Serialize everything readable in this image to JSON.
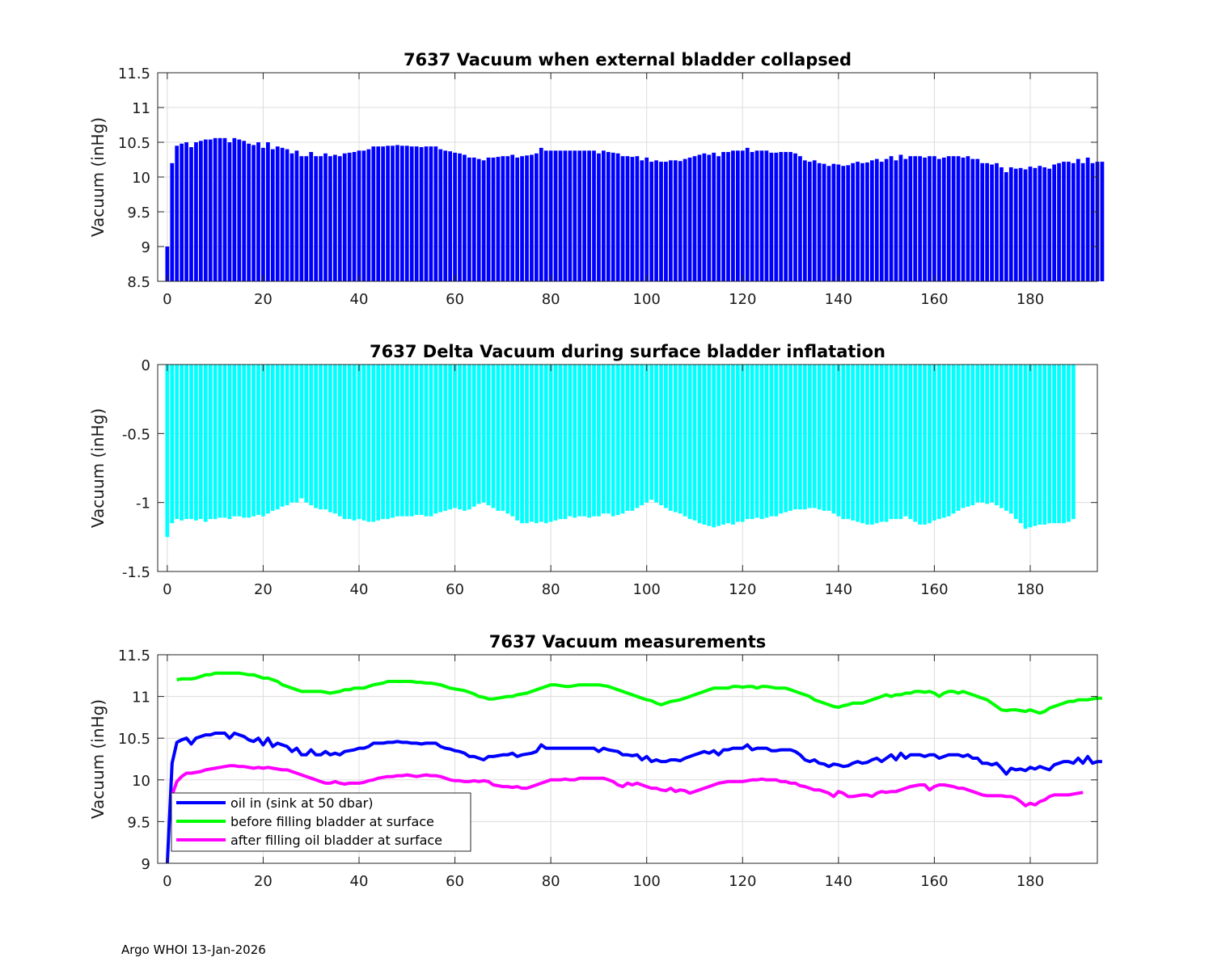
{
  "footer": "Argo WHOI 13-Jan-2026",
  "colors": {
    "blue": "#0000ff",
    "cyan": "#00ffff",
    "green": "#00ff00",
    "magenta": "#ff00ff",
    "grid": "#dcdcdc"
  },
  "chart_data": [
    {
      "type": "bar",
      "title": "7637 Vacuum when external bladder collapsed",
      "xlabel": "",
      "ylabel": "Vacuum (inHg)",
      "xlim": [
        -2,
        194
      ],
      "ylim": [
        8.5,
        11.5
      ],
      "xticks": [
        0,
        20,
        40,
        60,
        80,
        100,
        120,
        140,
        160,
        180
      ],
      "yticks": [
        8.5,
        9,
        9.5,
        10,
        10.5,
        11,
        11.5
      ],
      "ytick_labels": [
        "8.5",
        "9",
        "9.5",
        "10",
        "10.5",
        "11",
        "11.5"
      ],
      "color": "#0000ff",
      "series_key": "oil_in"
    },
    {
      "type": "bar",
      "title": "7637 Delta Vacuum during surface bladder inflatation",
      "xlabel": "",
      "ylabel": "Vacuum (inHg)",
      "xlim": [
        -2,
        194
      ],
      "ylim": [
        -1.5,
        0
      ],
      "xticks": [
        0,
        20,
        40,
        60,
        80,
        100,
        120,
        140,
        160,
        180
      ],
      "yticks": [
        -1.5,
        -1,
        -0.5,
        0
      ],
      "ytick_labels": [
        "-1.5",
        "-1",
        "-0.5",
        "0"
      ],
      "color": "#00ffff",
      "series_key": "delta"
    },
    {
      "type": "line",
      "title": "7637 Vacuum measurements",
      "xlabel": "",
      "ylabel": "Vacuum (inHg)",
      "xlim": [
        -2,
        194
      ],
      "ylim": [
        9,
        11.5
      ],
      "xticks": [
        0,
        20,
        40,
        60,
        80,
        100,
        120,
        140,
        160,
        180
      ],
      "yticks": [
        9,
        9.5,
        10,
        10.5,
        11,
        11.5
      ],
      "ytick_labels": [
        "9",
        "9.5",
        "10",
        "10.5",
        "11",
        "11.5"
      ],
      "legend_position": "bottom-left",
      "series": [
        {
          "name": "oil in (sink at 50 dbar)",
          "color": "#0000ff",
          "key": "oil_in"
        },
        {
          "name": "before filling bladder at surface",
          "color": "#00ff00",
          "key": "before"
        },
        {
          "name": "after filling oil bladder at surface",
          "color": "#ff00ff",
          "key": "after"
        }
      ]
    }
  ],
  "series_data": {
    "x_start": 0,
    "oil_in": [
      9.0,
      10.2,
      10.45,
      10.48,
      10.5,
      10.43,
      10.5,
      10.52,
      10.54,
      10.54,
      10.56,
      10.56,
      10.56,
      10.5,
      10.56,
      10.54,
      10.52,
      10.48,
      10.46,
      10.5,
      10.42,
      10.5,
      10.4,
      10.44,
      10.42,
      10.4,
      10.34,
      10.38,
      10.3,
      10.3,
      10.36,
      10.3,
      10.3,
      10.34,
      10.3,
      10.32,
      10.3,
      10.34,
      10.35,
      10.36,
      10.38,
      10.38,
      10.4,
      10.44,
      10.44,
      10.44,
      10.45,
      10.45,
      10.46,
      10.45,
      10.45,
      10.44,
      10.44,
      10.43,
      10.44,
      10.44,
      10.44,
      10.4,
      10.38,
      10.37,
      10.35,
      10.34,
      10.32,
      10.28,
      10.28,
      10.26,
      10.24,
      10.28,
      10.28,
      10.29,
      10.3,
      10.3,
      10.32,
      10.28,
      10.3,
      10.31,
      10.32,
      10.34,
      10.42,
      10.38,
      10.38,
      10.38,
      10.38,
      10.38,
      10.38,
      10.38,
      10.38,
      10.38,
      10.38,
      10.38,
      10.34,
      10.38,
      10.36,
      10.35,
      10.34,
      10.3,
      10.3,
      10.29,
      10.3,
      10.24,
      10.28,
      10.22,
      10.24,
      10.22,
      10.22,
      10.24,
      10.24,
      10.23,
      10.26,
      10.28,
      10.3,
      10.32,
      10.34,
      10.32,
      10.35,
      10.3,
      10.36,
      10.36,
      10.38,
      10.38,
      10.38,
      10.42,
      10.36,
      10.38,
      10.38,
      10.38,
      10.35,
      10.35,
      10.36,
      10.36,
      10.36,
      10.34,
      10.3,
      10.24,
      10.22,
      10.24,
      10.2,
      10.19,
      10.16,
      10.19,
      10.18,
      10.16,
      10.17,
      10.2,
      10.22,
      10.2,
      10.21,
      10.24,
      10.26,
      10.22,
      10.26,
      10.3,
      10.24,
      10.32,
      10.26,
      10.3,
      10.3,
      10.3,
      10.28,
      10.3,
      10.3,
      10.26,
      10.28,
      10.3,
      10.3,
      10.3,
      10.28,
      10.3,
      10.26,
      10.26,
      10.2,
      10.2,
      10.18,
      10.2,
      10.14,
      10.07,
      10.14,
      10.12,
      10.13,
      10.11,
      10.15,
      10.13,
      10.16,
      10.14,
      10.12,
      10.18,
      10.2,
      10.22,
      10.22,
      10.2,
      10.26,
      10.2,
      10.28,
      10.2,
      10.22,
      10.22
    ],
    "delta": [
      -1.25,
      -1.15,
      -1.12,
      -1.13,
      -1.12,
      -1.12,
      -1.13,
      -1.12,
      -1.14,
      -1.12,
      -1.12,
      -1.11,
      -1.11,
      -1.12,
      -1.1,
      -1.1,
      -1.11,
      -1.11,
      -1.1,
      -1.09,
      -1.1,
      -1.08,
      -1.06,
      -1.05,
      -1.03,
      -1.02,
      -1.0,
      -1.0,
      -0.97,
      -1.0,
      -1.02,
      -1.04,
      -1.05,
      -1.05,
      -1.07,
      -1.08,
      -1.1,
      -1.12,
      -1.12,
      -1.13,
      -1.12,
      -1.13,
      -1.14,
      -1.14,
      -1.13,
      -1.12,
      -1.12,
      -1.11,
      -1.1,
      -1.1,
      -1.1,
      -1.1,
      -1.09,
      -1.09,
      -1.1,
      -1.1,
      -1.08,
      -1.07,
      -1.06,
      -1.05,
      -1.04,
      -1.05,
      -1.06,
      -1.05,
      -1.03,
      -1.01,
      -1.0,
      -1.02,
      -1.04,
      -1.06,
      -1.06,
      -1.08,
      -1.1,
      -1.13,
      -1.15,
      -1.15,
      -1.14,
      -1.15,
      -1.14,
      -1.15,
      -1.14,
      -1.13,
      -1.12,
      -1.12,
      -1.1,
      -1.11,
      -1.1,
      -1.1,
      -1.11,
      -1.1,
      -1.1,
      -1.08,
      -1.08,
      -1.1,
      -1.09,
      -1.08,
      -1.06,
      -1.06,
      -1.04,
      -1.02,
      -1.0,
      -0.98,
      -1.0,
      -1.02,
      -1.04,
      -1.06,
      -1.07,
      -1.08,
      -1.1,
      -1.12,
      -1.13,
      -1.15,
      -1.16,
      -1.17,
      -1.18,
      -1.17,
      -1.16,
      -1.15,
      -1.16,
      -1.14,
      -1.14,
      -1.12,
      -1.12,
      -1.11,
      -1.12,
      -1.11,
      -1.1,
      -1.1,
      -1.08,
      -1.07,
      -1.06,
      -1.05,
      -1.05,
      -1.05,
      -1.04,
      -1.04,
      -1.05,
      -1.06,
      -1.06,
      -1.08,
      -1.1,
      -1.12,
      -1.12,
      -1.13,
      -1.14,
      -1.15,
      -1.16,
      -1.16,
      -1.15,
      -1.14,
      -1.14,
      -1.12,
      -1.12,
      -1.12,
      -1.1,
      -1.12,
      -1.14,
      -1.16,
      -1.16,
      -1.15,
      -1.13,
      -1.12,
      -1.11,
      -1.1,
      -1.08,
      -1.06,
      -1.04,
      -1.03,
      -1.02,
      -1.0,
      -1.0,
      -1.01,
      -1.0,
      -1.02,
      -1.04,
      -1.06,
      -1.08,
      -1.12,
      -1.15,
      -1.19,
      -1.18,
      -1.17,
      -1.16,
      -1.16,
      -1.15,
      -1.15,
      -1.15,
      -1.15,
      -1.14,
      -1.12
    ],
    "before": [
      null,
      null,
      11.2,
      11.21,
      11.21,
      11.21,
      11.22,
      11.24,
      11.26,
      11.26,
      11.28,
      11.28,
      11.28,
      11.28,
      11.28,
      11.28,
      11.27,
      11.26,
      11.26,
      11.24,
      11.22,
      11.22,
      11.2,
      11.18,
      11.14,
      11.12,
      11.1,
      11.08,
      11.06,
      11.06,
      11.06,
      11.06,
      11.06,
      11.05,
      11.04,
      11.05,
      11.06,
      11.08,
      11.08,
      11.1,
      11.1,
      11.1,
      11.12,
      11.14,
      11.15,
      11.16,
      11.18,
      11.18,
      11.18,
      11.18,
      11.18,
      11.18,
      11.17,
      11.17,
      11.16,
      11.16,
      11.15,
      11.14,
      11.12,
      11.1,
      11.09,
      11.08,
      11.07,
      11.05,
      11.03,
      11.0,
      10.99,
      10.97,
      10.97,
      10.98,
      10.99,
      11.0,
      11.0,
      11.02,
      11.03,
      11.04,
      11.06,
      11.08,
      11.1,
      11.12,
      11.14,
      11.14,
      11.13,
      11.12,
      11.12,
      11.13,
      11.14,
      11.14,
      11.14,
      11.14,
      11.14,
      11.13,
      11.12,
      11.1,
      11.08,
      11.06,
      11.04,
      11.02,
      11.0,
      10.98,
      10.96,
      10.95,
      10.92,
      10.9,
      10.92,
      10.94,
      10.95,
      10.96,
      10.98,
      11.0,
      11.02,
      11.04,
      11.06,
      11.08,
      11.1,
      11.1,
      11.1,
      11.1,
      11.12,
      11.12,
      11.11,
      11.12,
      11.12,
      11.1,
      11.12,
      11.12,
      11.11,
      11.1,
      11.1,
      11.1,
      11.08,
      11.06,
      11.04,
      11.02,
      11.0,
      10.96,
      10.94,
      10.92,
      10.9,
      10.88,
      10.87,
      10.89,
      10.9,
      10.92,
      10.92,
      10.92,
      10.94,
      10.96,
      10.98,
      11.0,
      11.02,
      11.0,
      11.02,
      11.02,
      11.04,
      11.04,
      11.06,
      11.06,
      11.05,
      11.06,
      11.04,
      11.0,
      11.04,
      11.06,
      11.06,
      11.04,
      11.06,
      11.04,
      11.02,
      11.0,
      10.98,
      10.96,
      10.92,
      10.88,
      10.84,
      10.83,
      10.84,
      10.84,
      10.83,
      10.82,
      10.84,
      10.82,
      10.8,
      10.82,
      10.86,
      10.88,
      10.9,
      10.92,
      10.94,
      10.94,
      10.96,
      10.96,
      10.96,
      10.97,
      10.98,
      10.98
    ],
    "after": [
      null,
      9.82,
      9.98,
      10.04,
      10.08,
      10.08,
      10.09,
      10.1,
      10.12,
      10.13,
      10.14,
      10.15,
      10.16,
      10.17,
      10.17,
      10.16,
      10.16,
      10.15,
      10.14,
      10.15,
      10.14,
      10.15,
      10.14,
      10.13,
      10.12,
      10.12,
      10.1,
      10.08,
      10.06,
      10.04,
      10.02,
      10.0,
      9.98,
      9.96,
      9.96,
      9.98,
      9.96,
      9.95,
      9.96,
      9.96,
      9.96,
      9.97,
      9.99,
      10.0,
      10.02,
      10.03,
      10.04,
      10.04,
      10.05,
      10.05,
      10.06,
      10.05,
      10.04,
      10.05,
      10.06,
      10.05,
      10.05,
      10.04,
      10.02,
      10.0,
      9.99,
      9.99,
      9.98,
      9.98,
      9.99,
      9.98,
      9.99,
      9.98,
      9.94,
      9.93,
      9.92,
      9.92,
      9.91,
      9.92,
      9.9,
      9.9,
      9.92,
      9.94,
      9.96,
      9.98,
      10.0,
      10.0,
      10.0,
      10.01,
      10.0,
      10.0,
      10.02,
      10.02,
      10.02,
      10.02,
      10.02,
      10.02,
      10.0,
      9.98,
      9.94,
      9.92,
      9.96,
      9.94,
      9.96,
      9.94,
      9.92,
      9.9,
      9.9,
      9.88,
      9.87,
      9.9,
      9.86,
      9.88,
      9.87,
      9.84,
      9.86,
      9.88,
      9.9,
      9.92,
      9.94,
      9.96,
      9.97,
      9.98,
      9.98,
      9.98,
      9.98,
      9.99,
      10.0,
      10.0,
      10.01,
      10.0,
      10.0,
      10.0,
      9.98,
      9.98,
      9.96,
      9.96,
      9.93,
      9.92,
      9.9,
      9.88,
      9.88,
      9.86,
      9.84,
      9.8,
      9.86,
      9.84,
      9.8,
      9.8,
      9.81,
      9.82,
      9.82,
      9.8,
      9.84,
      9.86,
      9.85,
      9.86,
      9.86,
      9.88,
      9.9,
      9.92,
      9.93,
      9.94,
      9.94,
      9.88,
      9.92,
      9.94,
      9.94,
      9.93,
      9.92,
      9.9,
      9.9,
      9.88,
      9.86,
      9.84,
      9.82,
      9.81,
      9.81,
      9.81,
      9.81,
      9.8,
      9.8,
      9.78,
      9.74,
      9.69,
      9.72,
      9.7,
      9.74,
      9.76,
      9.8,
      9.82,
      9.82,
      9.82,
      9.82,
      9.83,
      9.84,
      9.85
    ]
  }
}
